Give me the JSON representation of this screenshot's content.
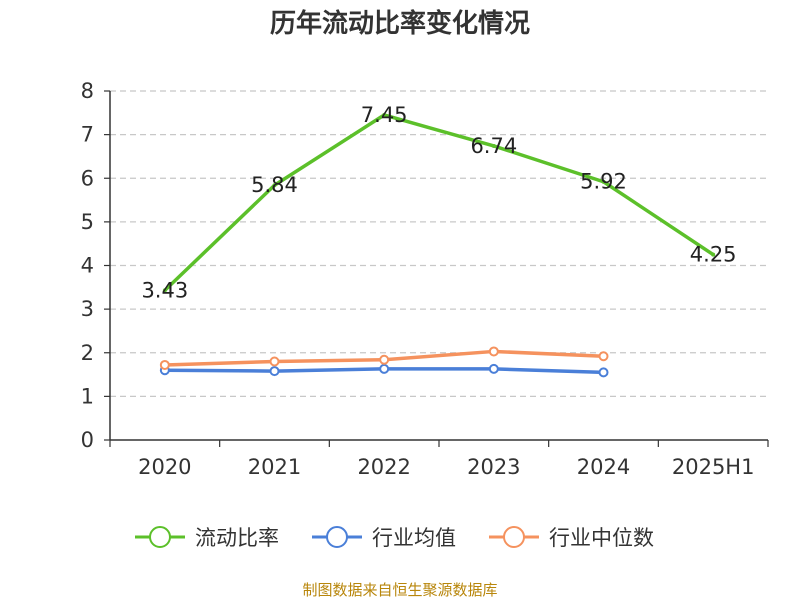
{
  "chart_data": {
    "type": "line",
    "title": "历年流动比率变化情况",
    "categories": [
      "2020",
      "2021",
      "2022",
      "2023",
      "2024",
      "2025H1"
    ],
    "ylim": [
      0,
      8
    ],
    "yticks": [
      0,
      1,
      2,
      3,
      4,
      5,
      6,
      7,
      8
    ],
    "grid": true,
    "legend_position": "bottom",
    "series": [
      {
        "name": "流动比率",
        "color": "#5cc02a",
        "values": [
          3.43,
          5.84,
          7.45,
          6.74,
          5.92,
          4.25
        ],
        "labels": [
          "3.43",
          "5.84",
          "7.45",
          "6.74",
          "5.92",
          "4.25"
        ]
      },
      {
        "name": "行业均值",
        "color": "#4a7fd8",
        "values": [
          1.6,
          1.58,
          1.63,
          1.63,
          1.55,
          null
        ]
      },
      {
        "name": "行业中位数",
        "color": "#f5925e",
        "values": [
          1.72,
          1.8,
          1.84,
          2.03,
          1.92,
          null
        ]
      }
    ],
    "source": "制图数据来自恒生聚源数据库"
  }
}
